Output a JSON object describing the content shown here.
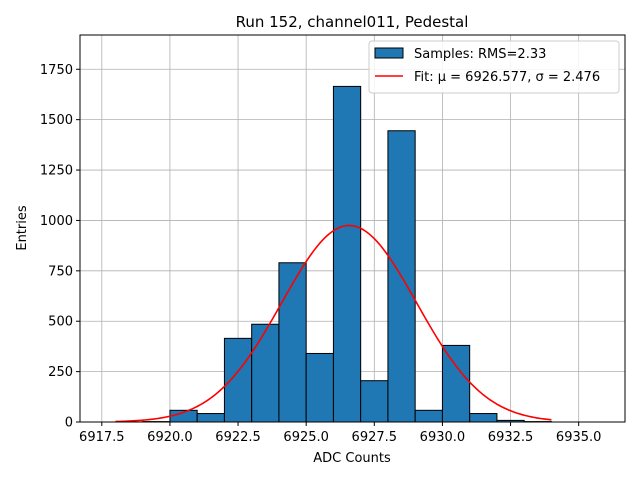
{
  "chart_data": {
    "type": "bar",
    "title": "Run 152, channel011, Pedestal",
    "xlabel": "ADC Counts",
    "ylabel": "Entries",
    "xlim": [
      6916.7,
      6936.7
    ],
    "ylim": [
      0,
      1920
    ],
    "grid": true,
    "legend_position": "top-right",
    "x_ticks": [
      6917.5,
      6920.0,
      6922.5,
      6925.0,
      6927.5,
      6930.0,
      6932.5,
      6935.0
    ],
    "x_tick_labels": [
      "6917.5",
      "6920.0",
      "6922.5",
      "6925.0",
      "6927.5",
      "6930.0",
      "6932.5",
      "6935.0"
    ],
    "y_ticks": [
      0,
      250,
      500,
      750,
      1000,
      1250,
      1500,
      1750
    ],
    "y_tick_labels": [
      "0",
      "250",
      "500",
      "750",
      "1000",
      "1250",
      "1500",
      "1750"
    ],
    "histogram": {
      "name": "Samples: RMS=2.33",
      "color": "#1f77b4",
      "edge_color": "#000000",
      "bin_width": 1.0,
      "bin_starts": [
        6917,
        6918,
        6919,
        6920,
        6921,
        6922,
        6923,
        6924,
        6925,
        6926,
        6927,
        6928,
        6929,
        6930,
        6931,
        6932,
        6933
      ],
      "values": [
        0,
        0,
        2,
        58,
        42,
        415,
        485,
        790,
        340,
        1665,
        205,
        1445,
        58,
        380,
        42,
        8,
        2
      ]
    },
    "fit": {
      "name": "Fit: μ = 6926.577, σ = 2.476",
      "color": "#ff0000",
      "mu": 6926.577,
      "sigma": 2.476,
      "amplitude": 975,
      "x_range": [
        6918.0,
        6934.0
      ]
    }
  }
}
